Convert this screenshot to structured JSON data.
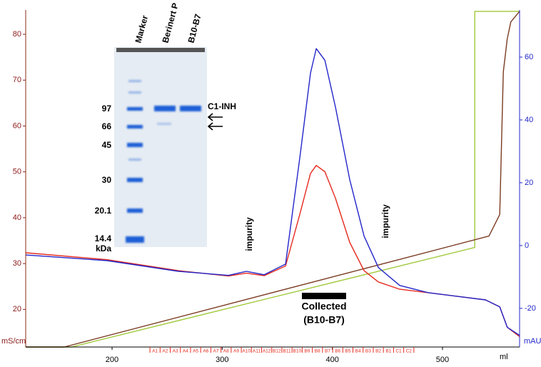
{
  "chart_data": {
    "type": "line",
    "x_label": "ml",
    "y_label": "mS/cm",
    "y2_label": "mAU",
    "xlim": [
      121.6,
      570
    ],
    "xticks": [
      200,
      300,
      400,
      500
    ],
    "ylim": [
      11.8,
      85.3
    ],
    "yticks": [
      20,
      30,
      40,
      50,
      60,
      70,
      80
    ],
    "y2lim": [
      -32.3,
      75
    ],
    "y2ticks": [
      -20,
      0,
      20,
      40,
      60
    ],
    "series": [
      {
        "color": "#a0c83a",
        "axis": "y",
        "x": [
          121.6,
          163.1,
          529.3,
          529.3,
          570
        ],
        "values": [
          11.8,
          11.8,
          33.5,
          85,
          85
        ]
      },
      {
        "color": "#7b3b22",
        "axis": "y",
        "x": [
          121.6,
          156.6,
          542.2,
          552,
          555.2,
          558.8,
          562,
          570
        ],
        "values": [
          11.8,
          11.8,
          36,
          40.7,
          71.8,
          79,
          82.7,
          85
        ]
      },
      {
        "color": "#e52a1f",
        "axis": "y2",
        "x": [
          121.6,
          195.5,
          260.3,
          305.7,
          321.9,
          338.1,
          357.5,
          370.5,
          380.2,
          385.4,
          393.2,
          402.9,
          415.8,
          428.8,
          441.8,
          461.2,
          487.1,
          539,
          552,
          558.8,
          570
        ],
        "values": [
          -2.3,
          -4.5,
          -8,
          -9.7,
          -8.8,
          -9.6,
          -6.5,
          10,
          23,
          25.5,
          23.5,
          15,
          1,
          -8,
          -11.6,
          -13.9,
          -15,
          -17.3,
          -19.5,
          -26,
          -29
        ]
      },
      {
        "color": "#2326c8",
        "axis": "y2",
        "x": [
          121.6,
          195.5,
          260.3,
          305.7,
          321.9,
          338.1,
          357.5,
          370.5,
          380.2,
          385.4,
          393.2,
          402.9,
          415.8,
          428.8,
          441.8,
          461.2,
          487.1,
          539,
          552,
          558.8,
          570
        ],
        "values": [
          -3,
          -4.8,
          -8.2,
          -9.5,
          -8.2,
          -9.3,
          -5.9,
          28,
          55,
          62.7,
          59,
          44,
          21,
          3,
          -7,
          -12.7,
          -15,
          -17.3,
          -19.5,
          -26,
          -28.6
        ]
      }
    ],
    "fractions": [
      "A1",
      "A2",
      "A3",
      "A4",
      "A5",
      "A6",
      "A7",
      "A8",
      "A9",
      "A10",
      "A11",
      "A12",
      "B12",
      "B11",
      "B10",
      "B9",
      "B8",
      "B7",
      "B6",
      "B5",
      "B4",
      "B3",
      "B2",
      "B1",
      "C1",
      "C2"
    ],
    "fraction_range": [
      234.4,
      474
    ],
    "annotations": [
      "impurity",
      "impurity",
      "Collected",
      "(B10-B7)"
    ]
  },
  "gel": {
    "lanes": [
      "Marker",
      "Berinert P",
      "B10-B7"
    ],
    "marker_sizes": [
      "97",
      "66",
      "45",
      "30",
      "20.1",
      "14.4"
    ],
    "unit": "kDa",
    "band_label": "C1-INH"
  }
}
